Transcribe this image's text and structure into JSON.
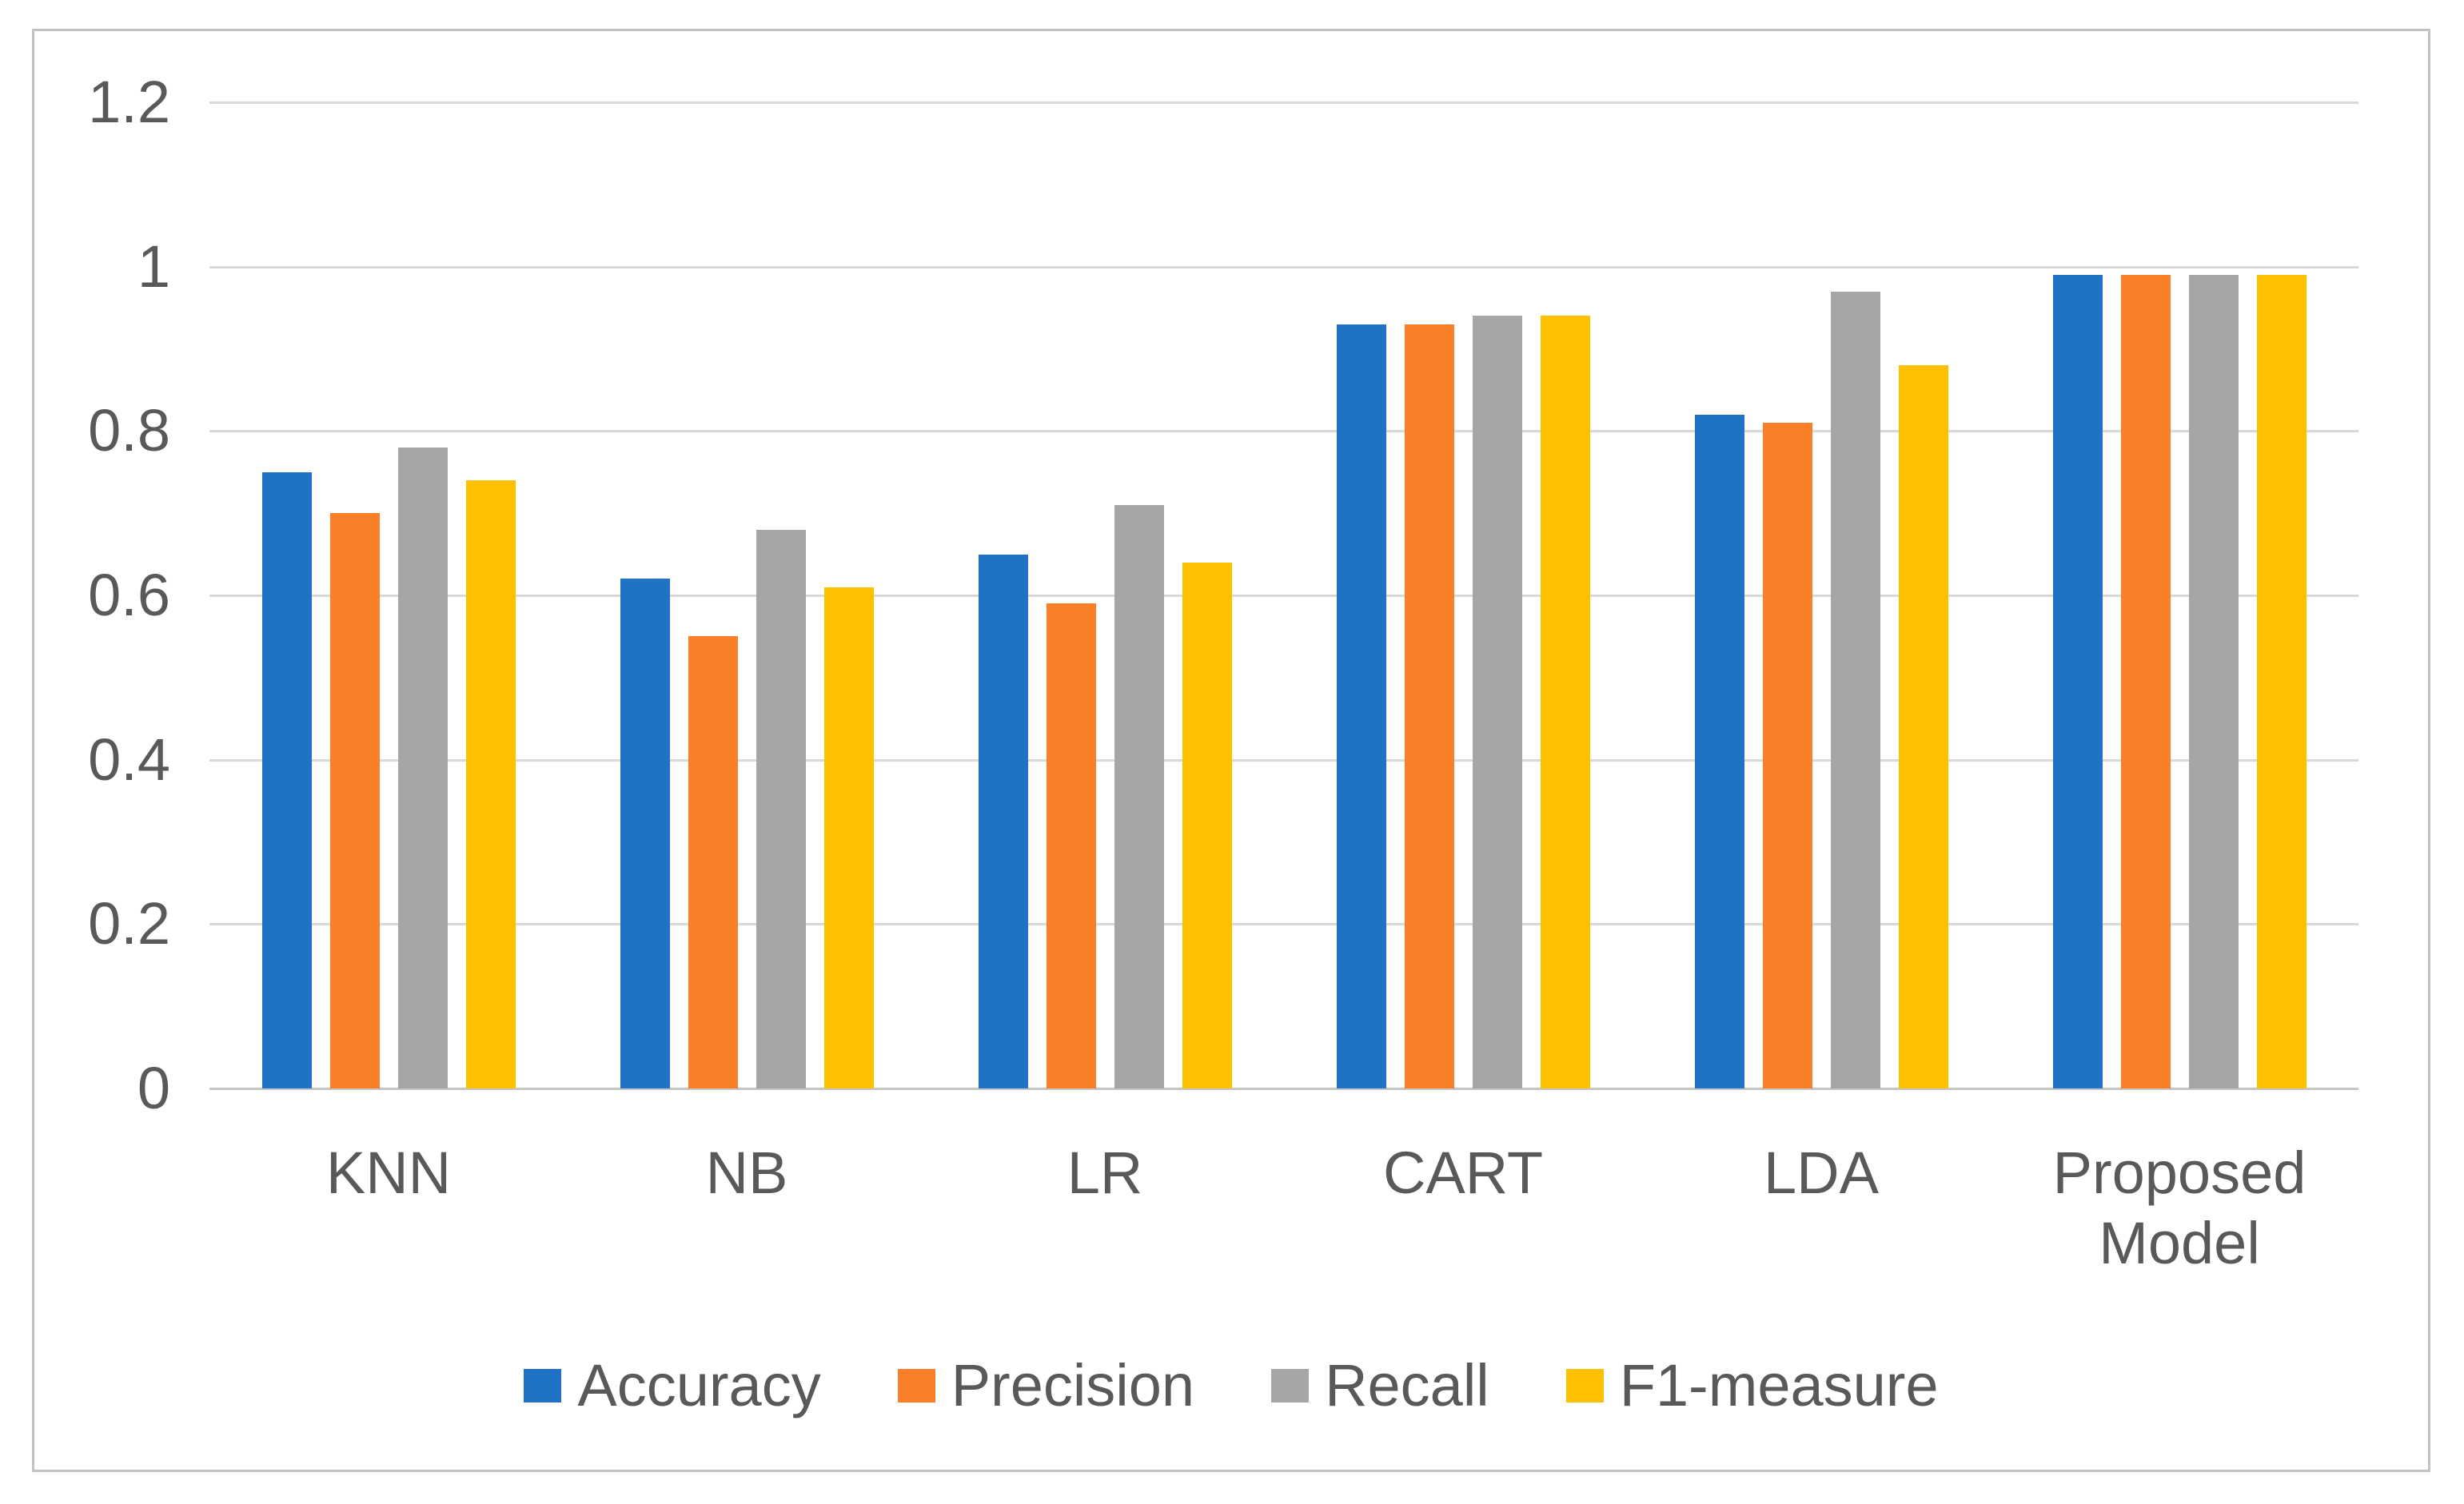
{
  "figure": {
    "background": "#ffffff",
    "frame_border_color": "#c2c2c2"
  },
  "chart_data": {
    "type": "bar",
    "title": "",
    "xlabel": "",
    "ylabel": "",
    "categories": [
      "KNN",
      "NB",
      "LR",
      "CART",
      "LDA",
      "Proposed Model"
    ],
    "series": [
      {
        "name": "Accuracy",
        "color": "#1f72c6",
        "values": [
          0.75,
          0.62,
          0.65,
          0.93,
          0.82,
          0.99
        ]
      },
      {
        "name": "Precision",
        "color": "#fb7e28",
        "values": [
          0.7,
          0.55,
          0.59,
          0.93,
          0.81,
          0.99
        ]
      },
      {
        "name": "Recall",
        "color": "#a6a6a6",
        "values": [
          0.78,
          0.68,
          0.71,
          0.94,
          0.97,
          0.99
        ]
      },
      {
        "name": "F1-measure",
        "color": "#ffc000",
        "values": [
          0.74,
          0.61,
          0.64,
          0.94,
          0.88,
          0.99
        ]
      }
    ],
    "ylim": [
      0,
      1.2
    ],
    "yticks": [
      {
        "value": 1.2,
        "label": "1.2"
      },
      {
        "value": 1.0,
        "label": "1"
      },
      {
        "value": 0.8,
        "label": "0.8"
      },
      {
        "value": 0.6,
        "label": "0.6"
      },
      {
        "value": 0.4,
        "label": "0.4"
      },
      {
        "value": 0.2,
        "label": "0.2"
      },
      {
        "value": 0.0,
        "label": "0"
      }
    ],
    "grid": true,
    "legend_position": "bottom",
    "style_colors": {
      "gridline": "#d9d9d9",
      "axis_line": "#c6c6c6",
      "tick_text": "#595959"
    }
  }
}
